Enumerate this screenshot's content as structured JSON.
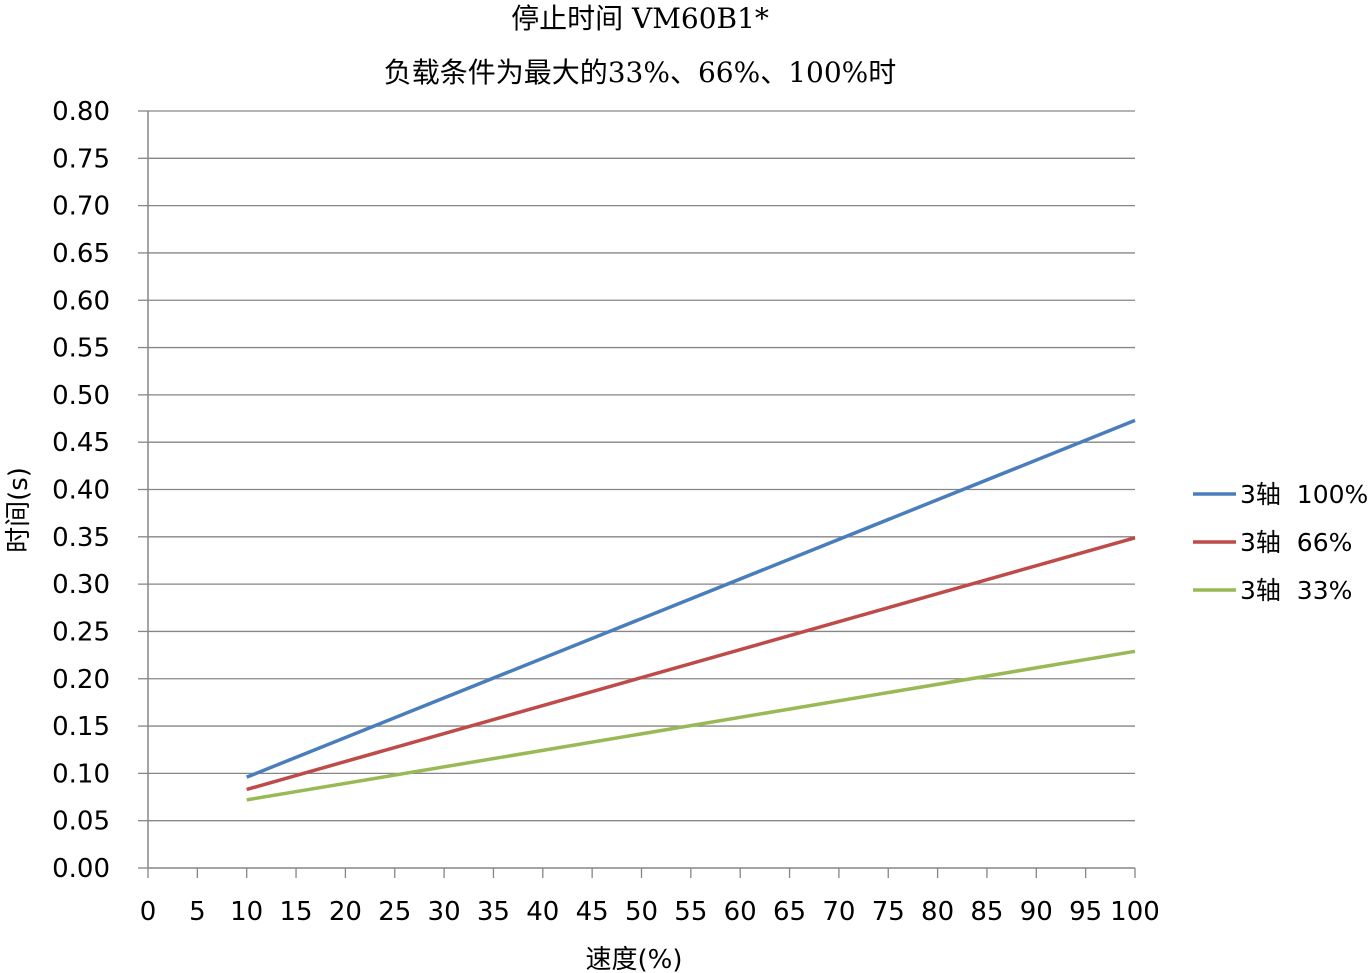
{
  "chart_data": {
    "type": "line",
    "title_line1": "停止时间 VM60B1*",
    "title_line2": "负载条件为最大的33%、66%、100%时",
    "xlabel": "速度(%)",
    "ylabel": "时间(s)",
    "x_ticks": [
      "0",
      "5",
      "10",
      "15",
      "20",
      "25",
      "30",
      "35",
      "40",
      "45",
      "50",
      "55",
      "60",
      "65",
      "70",
      "75",
      "80",
      "85",
      "90",
      "95",
      "100"
    ],
    "y_ticks": [
      "0.00",
      "0.05",
      "0.10",
      "0.15",
      "0.20",
      "0.25",
      "0.30",
      "0.35",
      "0.40",
      "0.45",
      "0.50",
      "0.55",
      "0.60",
      "0.65",
      "0.70",
      "0.75",
      "0.80"
    ],
    "xlim": [
      0,
      100
    ],
    "ylim": [
      0,
      0.8
    ],
    "grid": "horizontal",
    "legend_position": "right",
    "series": [
      {
        "name": "3轴  100%",
        "color": "#4A7EBB",
        "x": [
          10,
          100
        ],
        "y": [
          0.096,
          0.473
        ]
      },
      {
        "name": "3轴  66%",
        "color": "#BE4B48",
        "x": [
          10,
          100
        ],
        "y": [
          0.083,
          0.349
        ]
      },
      {
        "name": "3轴  33%",
        "color": "#98B954",
        "x": [
          10,
          100
        ],
        "y": [
          0.072,
          0.229
        ]
      }
    ]
  }
}
